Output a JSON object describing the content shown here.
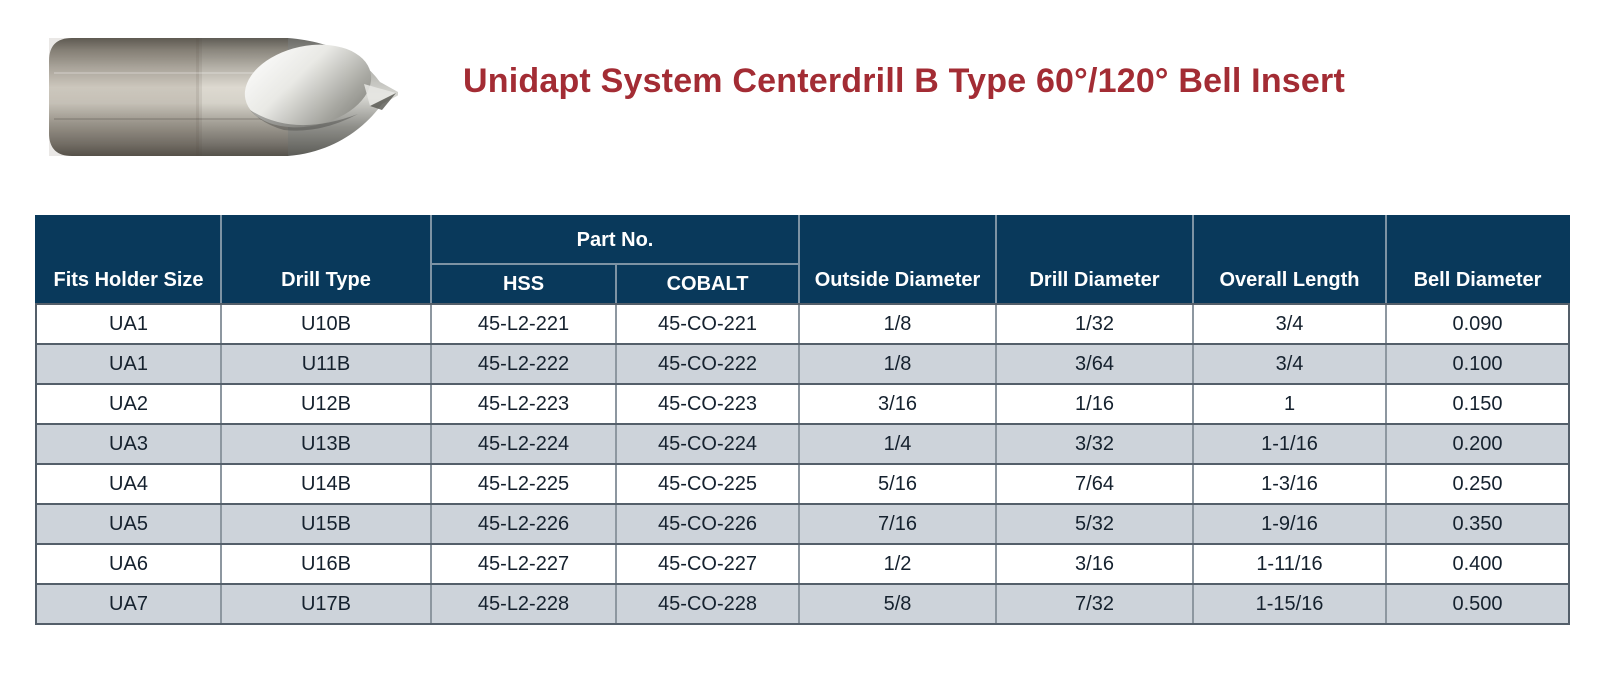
{
  "header": {
    "title": "Unidapt System Centerdrill B Type 60°/120° Bell Insert",
    "product_image": "centerdrill-bell-insert-photo"
  },
  "table": {
    "part_no_label": "Part No.",
    "columns": [
      "Fits Holder Size",
      "Drill Type",
      "HSS",
      "COBALT",
      "Outside Diameter",
      "Drill Diameter",
      "Overall Length",
      "Bell Diameter"
    ],
    "rows": [
      [
        "UA1",
        "U10B",
        "45-L2-221",
        "45-CO-221",
        "1/8",
        "1/32",
        "3/4",
        "0.090"
      ],
      [
        "UA1",
        "U11B",
        "45-L2-222",
        "45-CO-222",
        "1/8",
        "3/64",
        "3/4",
        "0.100"
      ],
      [
        "UA2",
        "U12B",
        "45-L2-223",
        "45-CO-223",
        "3/16",
        "1/16",
        "1",
        "0.150"
      ],
      [
        "UA3",
        "U13B",
        "45-L2-224",
        "45-CO-224",
        "1/4",
        "3/32",
        "1-1/16",
        "0.200"
      ],
      [
        "UA4",
        "U14B",
        "45-L2-225",
        "45-CO-225",
        "5/16",
        "7/64",
        "1-3/16",
        "0.250"
      ],
      [
        "UA5",
        "U15B",
        "45-L2-226",
        "45-CO-226",
        "7/16",
        "5/32",
        "1-9/16",
        "0.350"
      ],
      [
        "UA6",
        "U16B",
        "45-L2-227",
        "45-CO-227",
        "1/2",
        "3/16",
        "1-11/16",
        "0.400"
      ],
      [
        "UA7",
        "U17B",
        "45-L2-228",
        "45-CO-228",
        "5/8",
        "7/32",
        "1-15/16",
        "0.500"
      ]
    ]
  },
  "colors": {
    "header_navy": "#09395B",
    "row_alt": "#CDD3DA",
    "title_red": "#A32C34",
    "cell_text": "#15212E",
    "grid_dark": "#545F6A",
    "grid_light": "#8D97A0",
    "header_grid": "#7D93A4"
  }
}
